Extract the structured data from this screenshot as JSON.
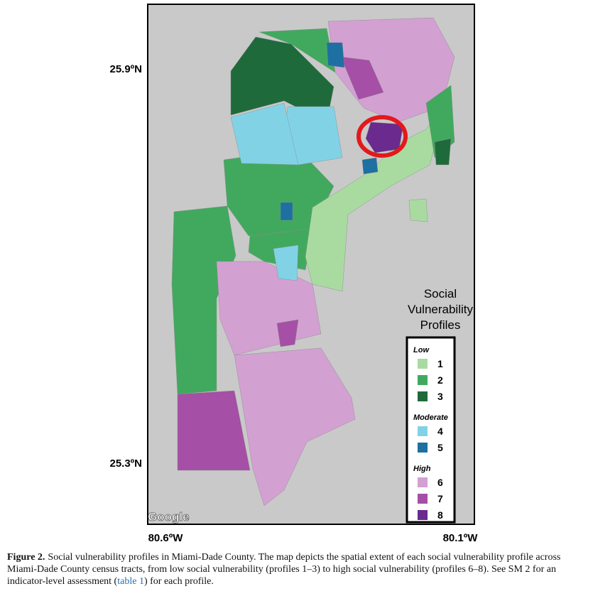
{
  "map": {
    "lat_labels": [
      "25.9ºN",
      "25.3ºN"
    ],
    "lon_labels": [
      "80.6ºW",
      "80.1ºW"
    ],
    "attribution": "Google",
    "legend": {
      "title_lines": [
        "Social",
        "Vulnerability",
        "Profiles"
      ],
      "groups": [
        {
          "label": "Low",
          "items": [
            {
              "label": "1",
              "color": "#a9dba0"
            },
            {
              "label": "2",
              "color": "#41a95e"
            },
            {
              "label": "3",
              "color": "#1f6a3b"
            }
          ]
        },
        {
          "label": "Moderate",
          "items": [
            {
              "label": "4",
              "color": "#82d2e6"
            },
            {
              "label": "5",
              "color": "#1e6fa2"
            }
          ]
        },
        {
          "label": "High",
          "items": [
            {
              "label": "6",
              "color": "#d3a0d2"
            },
            {
              "label": "7",
              "color": "#a54fa6"
            },
            {
              "label": "8",
              "color": "#6a2a8e"
            }
          ]
        }
      ]
    }
  },
  "caption": {
    "label": "Figure 2.",
    "text_before": "Social vulnerability profiles in Miami-Dade County. The map depicts the spatial extent of each social vulnerability profile across Miami-Dade County census tracts, from low social vulnerability (profiles 1–3) to high social vulnerability (profiles 6–8). See SM 2 for an indicator-level assessment (",
    "link": "table 1",
    "text_after": ") for each profile."
  }
}
